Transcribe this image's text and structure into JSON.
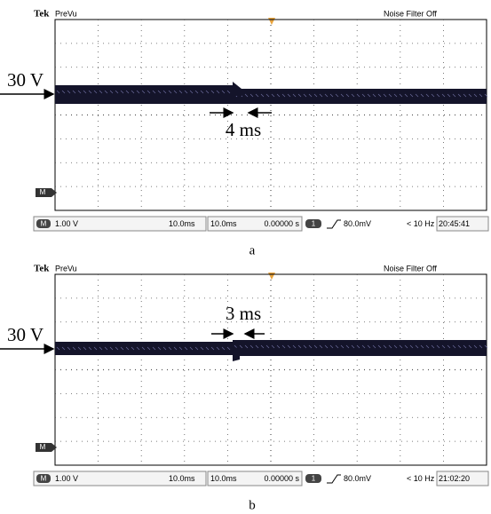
{
  "panels": [
    {
      "header": {
        "brand": "Tek",
        "mode": "PreVu",
        "filter": "Noise Filter Off"
      },
      "marker": "M",
      "voltage_label": "30 V",
      "time_annotation": "4 ms",
      "status": {
        "marker": "M",
        "scale": "1.00 V",
        "timebase": "10.0ms",
        "delay": "10.0ms",
        "position": "0.00000 s",
        "channel": "1",
        "trigger": "80.0mV",
        "frequency": "< 10 Hz",
        "clock": "20:45:41"
      },
      "caption": "a"
    },
    {
      "header": {
        "brand": "Tek",
        "mode": "PreVu",
        "filter": "Noise Filter Off"
      },
      "marker": "M",
      "voltage_label": "30 V",
      "time_annotation": "3 ms",
      "status": {
        "marker": "M",
        "scale": "1.00 V",
        "timebase": "10.0ms",
        "delay": "10.0ms",
        "position": "0.00000 s",
        "channel": "1",
        "trigger": "80.0mV",
        "frequency": "< 10 Hz",
        "clock": "21:02:20"
      },
      "caption": "b"
    }
  ]
}
